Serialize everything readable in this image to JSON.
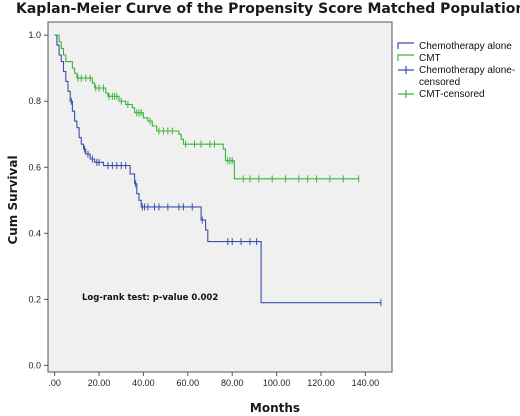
{
  "chart_data": {
    "type": "line",
    "title": "Kaplan-Meier Curve of the Propensity Score Matched Population",
    "xlabel": "Months",
    "ylabel": "Cum Survival",
    "xlim": [
      -3,
      152
    ],
    "ylim": [
      -0.02,
      1.04
    ],
    "xticks": [
      0,
      20,
      40,
      60,
      80,
      100,
      120,
      140
    ],
    "xtick_labels": [
      ".00",
      "20.00",
      "40.00",
      "60.00",
      "80.00",
      "100.00",
      "120.00",
      "140.00"
    ],
    "yticks": [
      0,
      0.2,
      0.4,
      0.6,
      0.8,
      1.0
    ],
    "ytick_labels": [
      "0.0",
      "0.2",
      "0.4",
      "0.6",
      "0.8",
      "1.0"
    ],
    "grid": false,
    "legend": "top-right",
    "legend_entries": [
      {
        "label": "Chemotherapy alone",
        "kind": "line",
        "color": "#3a4fa8"
      },
      {
        "label": "CMT",
        "kind": "line",
        "color": "#3db33d"
      },
      {
        "label": "Chemotherapy alone-censored",
        "label_lines": [
          "Chemotherapy alone-",
          "censored"
        ],
        "kind": "censor",
        "color": "#3a4fa8"
      },
      {
        "label": "CMT-censored",
        "kind": "censor",
        "color": "#3db33d"
      }
    ],
    "annotation": "Log-rank test: p-value 0.002",
    "series": [
      {
        "name": "Chemotherapy alone",
        "color": "#3a4fa8",
        "steps": [
          [
            0,
            1.0
          ],
          [
            1,
            0.97
          ],
          [
            2,
            0.94
          ],
          [
            3,
            0.92
          ],
          [
            4,
            0.89
          ],
          [
            5,
            0.86
          ],
          [
            6,
            0.83
          ],
          [
            7,
            0.8
          ],
          [
            8,
            0.77
          ],
          [
            9,
            0.74
          ],
          [
            10,
            0.72
          ],
          [
            11,
            0.69
          ],
          [
            12,
            0.67
          ],
          [
            13,
            0.655
          ],
          [
            14,
            0.64
          ],
          [
            16,
            0.625
          ],
          [
            18,
            0.615
          ],
          [
            22,
            0.605
          ],
          [
            34,
            0.58
          ],
          [
            36,
            0.55
          ],
          [
            37,
            0.52
          ],
          [
            38,
            0.5
          ],
          [
            39,
            0.48
          ],
          [
            66,
            0.44
          ],
          [
            68,
            0.41
          ],
          [
            69,
            0.375
          ],
          [
            93,
            0.19
          ],
          [
            147,
            0.19
          ]
        ],
        "censored": [
          [
            7.5,
            0.8
          ],
          [
            13.5,
            0.655
          ],
          [
            15,
            0.64
          ],
          [
            17,
            0.625
          ],
          [
            19,
            0.615
          ],
          [
            20,
            0.615
          ],
          [
            24,
            0.605
          ],
          [
            26,
            0.605
          ],
          [
            28,
            0.605
          ],
          [
            30,
            0.605
          ],
          [
            32,
            0.605
          ],
          [
            36.5,
            0.55
          ],
          [
            39.5,
            0.48
          ],
          [
            40.5,
            0.48
          ],
          [
            42,
            0.48
          ],
          [
            45,
            0.48
          ],
          [
            47,
            0.48
          ],
          [
            51,
            0.48
          ],
          [
            56,
            0.48
          ],
          [
            58,
            0.48
          ],
          [
            62,
            0.48
          ],
          [
            66.5,
            0.44
          ],
          [
            78,
            0.375
          ],
          [
            80,
            0.375
          ],
          [
            84,
            0.375
          ],
          [
            88,
            0.375
          ],
          [
            91,
            0.375
          ],
          [
            147,
            0.19
          ]
        ]
      },
      {
        "name": "CMT",
        "color": "#3db33d",
        "steps": [
          [
            0,
            1.0
          ],
          [
            2,
            0.98
          ],
          [
            3,
            0.96
          ],
          [
            4,
            0.94
          ],
          [
            5,
            0.92
          ],
          [
            8,
            0.9
          ],
          [
            9,
            0.885
          ],
          [
            10,
            0.87
          ],
          [
            17,
            0.855
          ],
          [
            18,
            0.84
          ],
          [
            23,
            0.825
          ],
          [
            24,
            0.815
          ],
          [
            29,
            0.8
          ],
          [
            32,
            0.79
          ],
          [
            35,
            0.78
          ],
          [
            36,
            0.765
          ],
          [
            40,
            0.75
          ],
          [
            42,
            0.74
          ],
          [
            44,
            0.725
          ],
          [
            46,
            0.71
          ],
          [
            56,
            0.7
          ],
          [
            57,
            0.685
          ],
          [
            58,
            0.67
          ],
          [
            76,
            0.655
          ],
          [
            77,
            0.62
          ],
          [
            81,
            0.565
          ],
          [
            137,
            0.565
          ]
        ],
        "censored": [
          [
            10.5,
            0.87
          ],
          [
            12,
            0.87
          ],
          [
            14,
            0.87
          ],
          [
            16,
            0.87
          ],
          [
            18.5,
            0.84
          ],
          [
            20,
            0.84
          ],
          [
            22,
            0.84
          ],
          [
            24.5,
            0.815
          ],
          [
            26,
            0.815
          ],
          [
            27,
            0.815
          ],
          [
            28,
            0.815
          ],
          [
            30,
            0.8
          ],
          [
            33,
            0.79
          ],
          [
            37,
            0.765
          ],
          [
            38,
            0.765
          ],
          [
            39,
            0.765
          ],
          [
            43,
            0.74
          ],
          [
            47,
            0.71
          ],
          [
            49,
            0.71
          ],
          [
            51,
            0.71
          ],
          [
            53,
            0.71
          ],
          [
            59,
            0.67
          ],
          [
            63,
            0.67
          ],
          [
            66,
            0.67
          ],
          [
            70,
            0.67
          ],
          [
            72,
            0.67
          ],
          [
            78,
            0.62
          ],
          [
            79,
            0.62
          ],
          [
            80,
            0.62
          ],
          [
            85,
            0.565
          ],
          [
            88,
            0.565
          ],
          [
            92,
            0.565
          ],
          [
            98,
            0.565
          ],
          [
            104,
            0.565
          ],
          [
            110,
            0.565
          ],
          [
            114,
            0.565
          ],
          [
            118,
            0.565
          ],
          [
            124,
            0.565
          ],
          [
            130,
            0.565
          ],
          [
            137,
            0.565
          ]
        ]
      }
    ]
  }
}
